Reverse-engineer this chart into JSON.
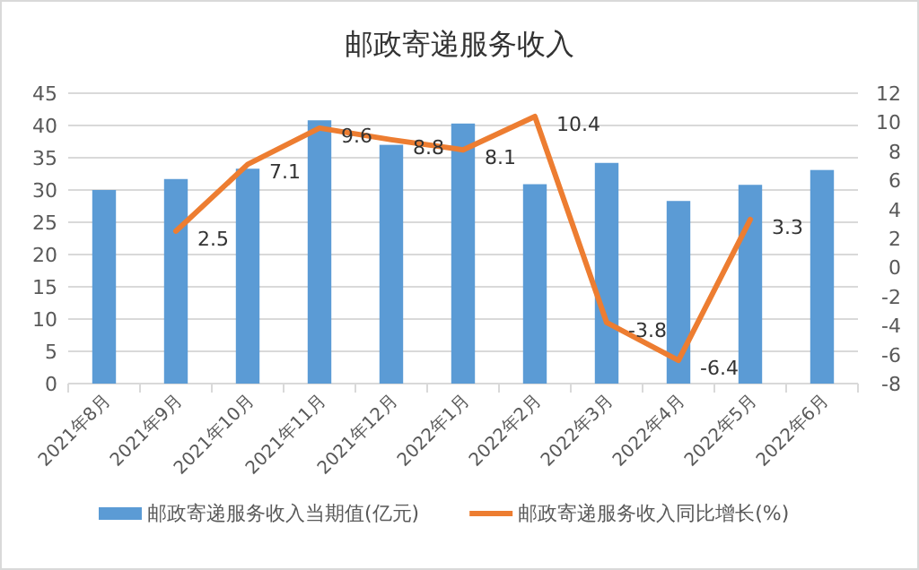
{
  "chart_data": {
    "type": "bar",
    "title": "邮政寄递服务收入",
    "categories": [
      "2021年8月",
      "2021年9月",
      "2021年10月",
      "2021年11月",
      "2021年12月",
      "2022年1月",
      "2022年2月",
      "2022年3月",
      "2022年4月",
      "2022年5月",
      "2022年6月"
    ],
    "series": [
      {
        "name": "邮政寄递服务收入当期值(亿元)",
        "color": "#5b9bd5",
        "values": [
          30.0,
          31.7,
          33.3,
          40.8,
          37,
          40.3,
          30.9,
          34.2,
          28.3,
          30.8,
          33.1
        ]
      },
      {
        "name": "邮政寄递服务收入同比增长(%)",
        "type": "line",
        "axis": "y2",
        "color": "#ed7d31",
        "values": [
          null,
          2.5,
          7.1,
          9.6,
          8.8,
          8.1,
          10.4,
          -3.8,
          -6.4,
          3.3,
          null
        ],
        "value_labels": [
          null,
          "2.5",
          "7.1",
          "9.6",
          "8.8",
          "8.1",
          "10.4",
          "-3.8",
          "-6.4",
          "3.3",
          null
        ]
      }
    ],
    "ylim": [
      0,
      45
    ],
    "yticks": [
      0,
      5,
      10,
      15,
      20,
      25,
      30,
      35,
      40,
      45
    ],
    "y2lim": [
      -8,
      12
    ],
    "y2ticks": [
      -8,
      -6,
      -4,
      -2,
      0,
      2,
      4,
      6,
      8,
      10,
      12
    ],
    "grid": "y",
    "legend": "bottom",
    "marker": "none",
    "line_style": "solid"
  }
}
